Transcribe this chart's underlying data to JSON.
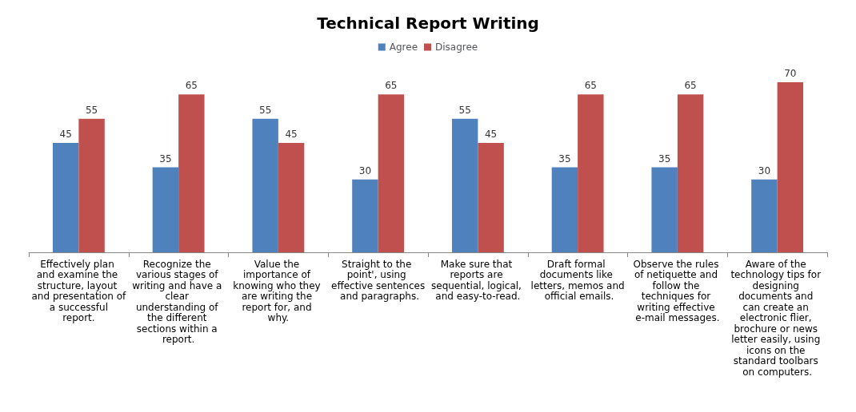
{
  "chart_data": {
    "type": "bar",
    "title": "Technical Report Writing",
    "categories": [
      "Effectively plan and examine the structure, layout and presentation of a successful report.",
      "Recognize the various stages of writing and have a clear understanding of the different sections within a report.",
      "Value the importance of knowing who they are writing the report for, and why.",
      "Straight to the point', using effective sentences and paragraphs.",
      "Make sure that reports are sequential, logical, and easy-to-read.",
      "Draft formal documents like letters, memos and official emails.",
      "Observe the rules of netiquette and follow the techniques for writing effective e-mail messages.",
      "Aware of the technology tips for designing documents and can create an electronic flier, brochure or news letter easily, using icons on the standard toolbars on computers."
    ],
    "series": [
      {
        "name": "Agree",
        "color": "#4f81bd",
        "values": [
          45,
          35,
          55,
          30,
          55,
          35,
          35,
          30
        ]
      },
      {
        "name": "Disagree",
        "color": "#c0504d",
        "values": [
          55,
          65,
          45,
          65,
          45,
          65,
          65,
          70
        ]
      }
    ],
    "data_labels": true,
    "legend": "top",
    "grid": false
  }
}
